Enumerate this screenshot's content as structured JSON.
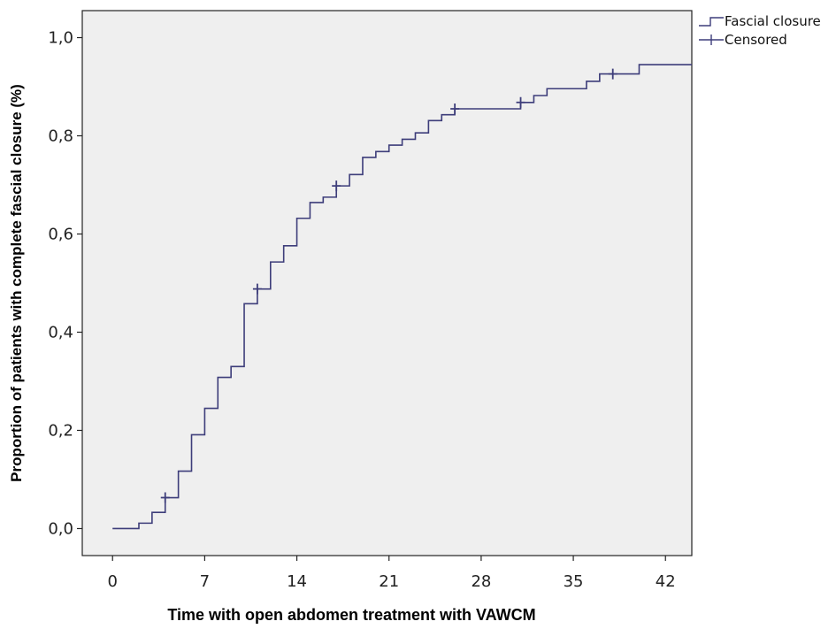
{
  "chart_data": {
    "type": "line",
    "subtype": "kaplan-meier step (cumulative incidence)",
    "xlabel": "Time with open abdomen treatment with VAWCM",
    "ylabel": "Proportion of patients with complete fascial closure (%)",
    "xlim": [
      -2.3,
      44
    ],
    "ylim": [
      -0.055,
      1.055
    ],
    "x_ticks": [
      0,
      7,
      14,
      21,
      28,
      35,
      42
    ],
    "x_tick_labels": [
      "0",
      "7",
      "14",
      "21",
      "28",
      "35",
      "42"
    ],
    "y_ticks": [
      0.0,
      0.2,
      0.4,
      0.6,
      0.8,
      1.0
    ],
    "y_tick_labels": [
      "0,0",
      "0,2",
      "0,4",
      "0,6",
      "0,8",
      "1,0"
    ],
    "grid": false,
    "plot_background": "#efefef",
    "series": [
      {
        "name": "Fascial closure",
        "color": "#3d3d7a",
        "step": [
          [
            0,
            0.0
          ],
          [
            2,
            0.011
          ],
          [
            3,
            0.033
          ],
          [
            4,
            0.063
          ],
          [
            5,
            0.117
          ],
          [
            6,
            0.191
          ],
          [
            7,
            0.245
          ],
          [
            8,
            0.308
          ],
          [
            9,
            0.33
          ],
          [
            10,
            0.458
          ],
          [
            11,
            0.488
          ],
          [
            12,
            0.543
          ],
          [
            13,
            0.576
          ],
          [
            14,
            0.632
          ],
          [
            15,
            0.664
          ],
          [
            16,
            0.675
          ],
          [
            17,
            0.698
          ],
          [
            18,
            0.721
          ],
          [
            19,
            0.756
          ],
          [
            20,
            0.768
          ],
          [
            21,
            0.781
          ],
          [
            22,
            0.793
          ],
          [
            23,
            0.806
          ],
          [
            24,
            0.831
          ],
          [
            25,
            0.843
          ],
          [
            26,
            0.855
          ],
          [
            31,
            0.868
          ],
          [
            32,
            0.882
          ],
          [
            33,
            0.896
          ],
          [
            36,
            0.911
          ],
          [
            37,
            0.926
          ],
          [
            40,
            0.945
          ],
          [
            44,
            0.945
          ]
        ]
      },
      {
        "name": "Censored",
        "color": "#3d3d7a",
        "marker": "+",
        "points": [
          [
            4,
            0.063
          ],
          [
            11,
            0.488
          ],
          [
            17,
            0.698
          ],
          [
            26,
            0.855
          ],
          [
            31,
            0.868
          ],
          [
            38,
            0.926
          ]
        ]
      }
    ],
    "legend": {
      "placement": "top-right, outside plot",
      "entries": [
        "Fascial closure",
        "Censored"
      ]
    }
  }
}
